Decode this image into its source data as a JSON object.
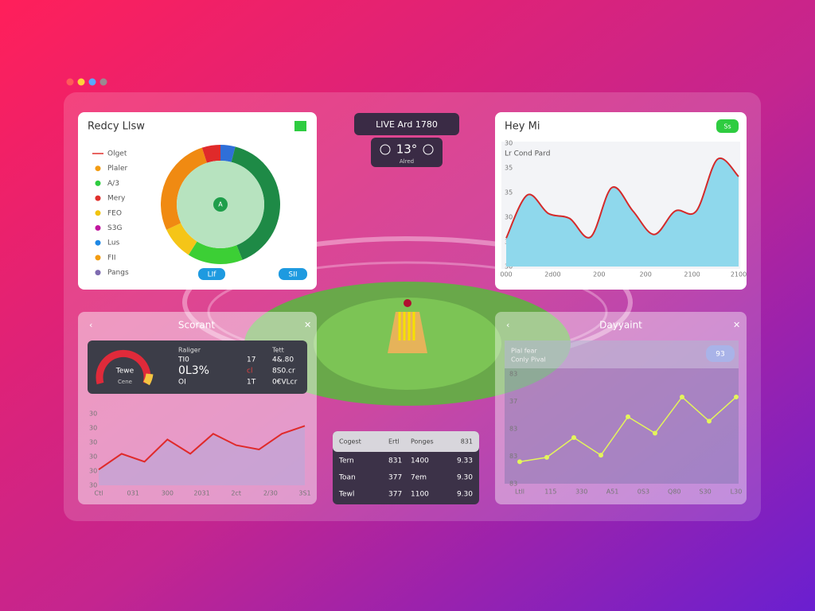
{
  "top_left": {
    "title": "Redcy Llsw",
    "legend": [
      {
        "label": "Olget",
        "color": "#e0302c"
      },
      {
        "label": "Plaler",
        "color": "#f39c12"
      },
      {
        "label": "A/3",
        "color": "#2ecc40"
      },
      {
        "label": "Mery",
        "color": "#e0302c"
      },
      {
        "label": "FEO",
        "color": "#f1c40f"
      },
      {
        "label": "S3G",
        "color": "#c0169e"
      },
      {
        "label": "Lus",
        "color": "#1e88e5"
      },
      {
        "label": "FII",
        "color": "#f39c12"
      },
      {
        "label": "Pangs",
        "color": "#7e6bb0"
      }
    ],
    "donut": {
      "values": [
        4,
        40,
        15,
        9,
        27,
        5
      ],
      "colors": [
        "#2f6fd8",
        "#1e8a46",
        "#3ccf35",
        "#f5c518",
        "#f08a12",
        "#e02a2a"
      ],
      "center": "A"
    },
    "buttons": [
      "LIf",
      "SII"
    ]
  },
  "live": {
    "title": "LIVE Ard 1780",
    "score": "13°",
    "caption": "Alred"
  },
  "top_right": {
    "title": "Hey Mi",
    "badge": "Ss",
    "subtitle": "Lr Cond Pard",
    "chart": {
      "type": "area",
      "values": [
        23,
        58,
        43,
        39,
        24,
        64,
        45,
        26,
        45,
        45,
        87,
        73
      ],
      "ylim": [
        0,
        100
      ],
      "y_labels": [
        "30",
        "35",
        "30",
        "35",
        "35",
        "30"
      ],
      "x_labels": [
        "000",
        "2d00",
        "200",
        "200",
        "2100",
        "2100"
      ],
      "line_color": "#d42a2a",
      "fill_color": "#8fd8ec"
    }
  },
  "bottom_left": {
    "title": "Scorant",
    "card": {
      "gauge_labels": [
        "Tewe",
        "Cene"
      ],
      "heads": [
        "Raliger",
        "Tett"
      ],
      "rows": [
        [
          "TI0",
          "17",
          "4&.80"
        ],
        [
          "0L3%",
          "cl",
          "8S0.cr"
        ],
        [
          "OI",
          "1T",
          "0€VLcr"
        ]
      ]
    },
    "chart": {
      "type": "line",
      "values": [
        22,
        44,
        33,
        64,
        44,
        72,
        56,
        50,
        72,
        83
      ],
      "ylim": [
        0,
        100
      ],
      "y_labels": [
        "30",
        "30",
        "30",
        "30",
        "30",
        "30"
      ],
      "x_labels": [
        "Ctl",
        "031",
        "300",
        "2031",
        "2ct",
        "2/30",
        "3S1"
      ],
      "line_color": "#e02a2a",
      "fill_color": "#b9a9d8"
    }
  },
  "bottom_right": {
    "title": "Dayyaint",
    "header": [
      "Plal fear",
      "Conly Pival"
    ],
    "badge": "93",
    "chart": {
      "type": "points",
      "values": [
        20,
        24,
        42,
        26,
        61,
        46,
        79,
        57,
        79
      ],
      "ylim": [
        0,
        100
      ],
      "y_labels": [
        "83",
        "83",
        "83",
        "37",
        "83"
      ],
      "x_labels": [
        "Ltll",
        "115",
        "330",
        "A51",
        "0S3",
        "Q80",
        "S30",
        "L30"
      ],
      "line_color": "#e4f55a"
    }
  },
  "table": {
    "header": [
      "Cogest",
      "Ertl",
      "Ponges",
      "831"
    ],
    "rows": [
      [
        "Tern",
        "831",
        "1400",
        "9.33"
      ],
      [
        "Toan",
        "377",
        "7em",
        "9.30"
      ],
      [
        "Tewl",
        "377",
        "1100",
        "9.30"
      ]
    ]
  }
}
